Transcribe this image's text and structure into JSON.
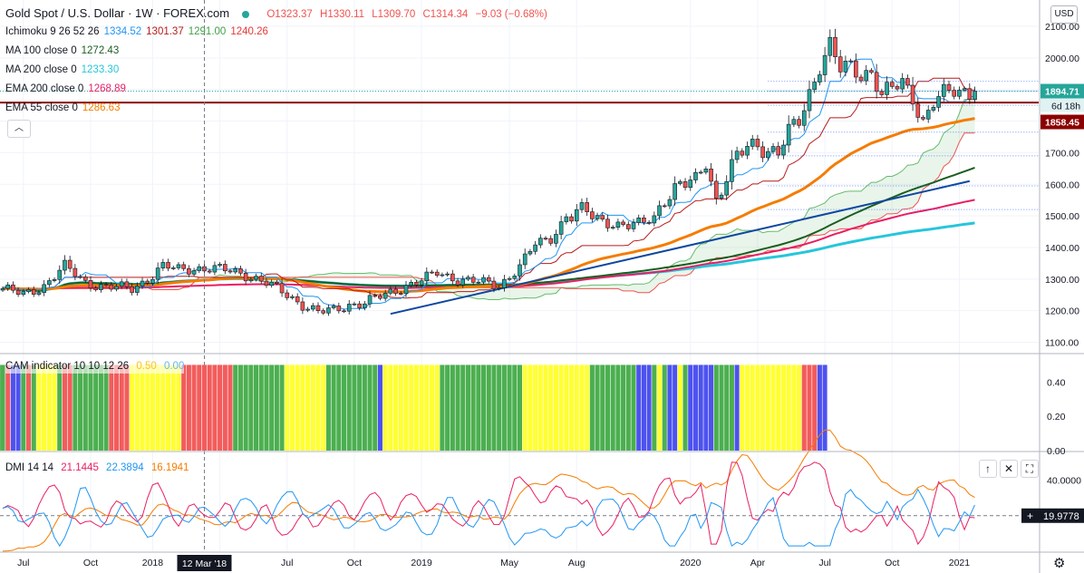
{
  "header": {
    "symbol_title": "Gold Spot / U.S. Dollar · 1W · FOREX.com",
    "ohlc": {
      "open": "O1323.37",
      "high": "H1330.11",
      "low": "L1309.70",
      "close": "C1314.34",
      "change": "−9.03 (−0.68%)"
    },
    "market_status_color": "#26a69a"
  },
  "indicators": [
    {
      "name": "Ichimoku 9 26 52 26",
      "values": [
        {
          "text": "1334.52",
          "color": "#2196f3"
        },
        {
          "text": "1301.37",
          "color": "#b71c1c"
        },
        {
          "text": "1291.00",
          "color": "#43a047"
        },
        {
          "text": "1240.26",
          "color": "#e53935"
        }
      ]
    },
    {
      "name": "MA 100 close 0",
      "values": [
        {
          "text": "1272.43",
          "color": "#1b5e20"
        }
      ]
    },
    {
      "name": "MA 200 close 0",
      "values": [
        {
          "text": "1233.30",
          "color": "#26c6da"
        }
      ]
    },
    {
      "name": "EMA 200 close 0",
      "values": [
        {
          "text": "1268.89",
          "color": "#e91e63"
        }
      ]
    },
    {
      "name": "EMA 55 close 0",
      "values": [
        {
          "text": "1286.63",
          "color": "#f57c00"
        }
      ]
    }
  ],
  "collapse_icon": "chevron-up-icon",
  "currency_button": "USD",
  "cam": {
    "name": "CAM indicator 10 10 12 26",
    "values": [
      {
        "text": "0.50",
        "color": "#ffeb3b"
      },
      {
        "text": "0.00",
        "color": "#90caf9"
      }
    ],
    "colors": {
      "G": "#4caf50",
      "Y": "#ffff33",
      "R": "#f25c5c",
      "B": "#4d52ef"
    },
    "sequence": "GRBBGRGYYYYGRRGGGGGGGRRRRYYYYYYYYYYRRRRRRRRRRGGGGGGGGGGYYYYYYYYGGGGGGGGGGBYYYYYYYYYYYGGGGGGGGGGGGGGGGYYYYYYYYYYYYYGGGGGGGGGBBBGYGBBYGBBBBBGGGGBYYYYYYYYYYYYRRRBB",
    "axis": [
      "0.40",
      "0.20",
      "0.00"
    ],
    "axis_values": [
      0.4,
      0.2,
      0.0
    ],
    "ylim": [
      0,
      0.55
    ]
  },
  "dmi": {
    "name": "DMI 14 14",
    "values": [
      {
        "text": "21.1445",
        "color": "#e91e63"
      },
      {
        "text": "22.3894",
        "color": "#2196f3"
      },
      {
        "text": "16.1941",
        "color": "#f57c00"
      }
    ],
    "axis": [
      "40.0000"
    ],
    "axis_values": [
      40
    ],
    "current_label": "19.9778",
    "current_value": 19.98,
    "ylim": [
      0,
      55
    ],
    "buttons": {
      "up": "arrow-up-icon",
      "close": "close-icon",
      "maximize": "maximize-icon"
    }
  },
  "price_axis_labels": {
    "last": "1894.71",
    "countdown": "6d 18h",
    "level": "1858.45"
  },
  "chart_data": {
    "type": "candlestick",
    "timeframe": "1W",
    "x_ticks": [
      "Jul",
      "Oct",
      "2018",
      "Apr",
      "Jul",
      "Oct",
      "2019",
      "May",
      "Aug",
      "2020",
      "Apr",
      "Jul",
      "Oct",
      "2021"
    ],
    "x_tick_index": [
      4,
      17,
      29,
      42,
      55,
      68,
      81,
      98,
      111,
      133,
      146,
      159,
      172,
      185
    ],
    "crosshair_label": "12 Mar '18",
    "crosshair_index": 39,
    "y_ticks": [
      1100,
      1200,
      1300,
      1400,
      1500,
      1600,
      1700,
      1800,
      1900,
      2000,
      2100
    ],
    "y_tick_labels": [
      "1100.00",
      "1200.00",
      "1300.00",
      "1400.00",
      "1500.00",
      "1600.00",
      "1700.00",
      "1800.00",
      "1900.00",
      "2000.00",
      "2100.00"
    ],
    "ylim": [
      1070,
      2120
    ],
    "anchors": [
      [
        0,
        1270
      ],
      [
        4,
        1250
      ],
      [
        8,
        1280
      ],
      [
        12,
        1340
      ],
      [
        16,
        1290
      ],
      [
        20,
        1275
      ],
      [
        25,
        1270
      ],
      [
        28,
        1300
      ],
      [
        31,
        1340
      ],
      [
        34,
        1330
      ],
      [
        38,
        1335
      ],
      [
        42,
        1330
      ],
      [
        46,
        1320
      ],
      [
        50,
        1295
      ],
      [
        54,
        1260
      ],
      [
        58,
        1220
      ],
      [
        61,
        1195
      ],
      [
        64,
        1200
      ],
      [
        67,
        1220
      ],
      [
        70,
        1225
      ],
      [
        74,
        1250
      ],
      [
        78,
        1280
      ],
      [
        81,
        1295
      ],
      [
        84,
        1320
      ],
      [
        88,
        1300
      ],
      [
        92,
        1290
      ],
      [
        96,
        1280
      ],
      [
        100,
        1340
      ],
      [
        103,
        1410
      ],
      [
        106,
        1430
      ],
      [
        109,
        1500
      ],
      [
        113,
        1510
      ],
      [
        117,
        1480
      ],
      [
        121,
        1465
      ],
      [
        124,
        1480
      ],
      [
        126,
        1500
      ],
      [
        128,
        1560
      ],
      [
        131,
        1590
      ],
      [
        134,
        1610
      ],
      [
        136,
        1680
      ],
      [
        138,
        1550
      ],
      [
        140,
        1620
      ],
      [
        142,
        1680
      ],
      [
        144,
        1720
      ],
      [
        146,
        1730
      ],
      [
        148,
        1710
      ],
      [
        150,
        1700
      ],
      [
        152,
        1760
      ],
      [
        154,
        1800
      ],
      [
        156,
        1890
      ],
      [
        158,
        1980
      ],
      [
        160,
        2040
      ],
      [
        162,
        1960
      ],
      [
        164,
        1970
      ],
      [
        166,
        1950
      ],
      [
        168,
        1960
      ],
      [
        170,
        1880
      ],
      [
        172,
        1900
      ],
      [
        174,
        1920
      ],
      [
        176,
        1880
      ],
      [
        178,
        1800
      ],
      [
        180,
        1860
      ],
      [
        182,
        1880
      ],
      [
        184,
        1895
      ]
    ],
    "last_price": 1894.71,
    "level_line": 1858.45,
    "dotted_levels": [
      1926,
      1895,
      1850,
      1765,
      1690,
      1595,
      1520
    ],
    "trendline": [
      [
        75,
        1190
      ],
      [
        187,
        1610
      ]
    ]
  }
}
